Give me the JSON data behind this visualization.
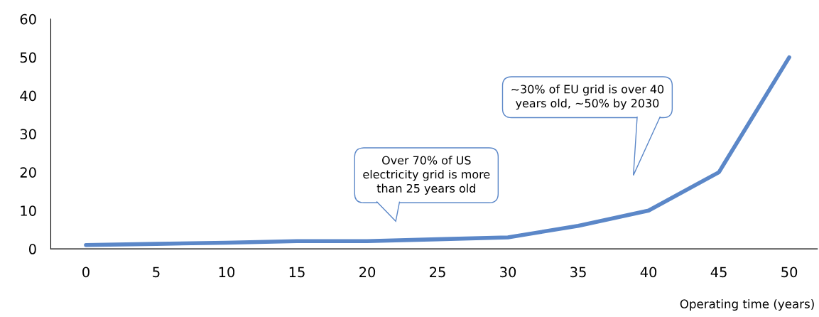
{
  "chart_data": {
    "type": "line",
    "xlabel": "Operating time (years)",
    "x": [
      0,
      5,
      10,
      15,
      20,
      25,
      30,
      35,
      40,
      45,
      50
    ],
    "series": [
      {
        "color": "#5b87c8",
        "values": [
          1,
          1.3,
          1.6,
          2,
          2,
          2.5,
          3,
          6,
          10,
          20,
          50
        ]
      }
    ],
    "xlim": [
      -2.5,
      52
    ],
    "xticks": [
      0,
      5,
      10,
      15,
      20,
      25,
      30,
      35,
      40,
      45,
      50
    ],
    "ylim": [
      0,
      60
    ],
    "yticks": [
      0,
      10,
      20,
      30,
      40,
      50,
      60
    ],
    "grid": false,
    "marker": "none",
    "line_style": "solid",
    "annotations": [
      "Over 70% of US\nelectricity grid is more\nthan 25 years old",
      "~30% of EU grid is over 40\nyears old, ~50% by 2030"
    ]
  }
}
